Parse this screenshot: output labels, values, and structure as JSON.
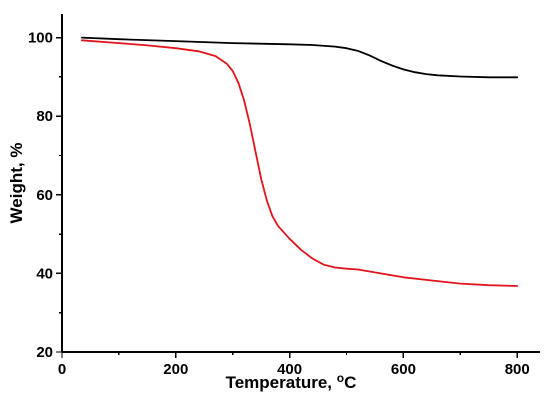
{
  "chart_data": {
    "type": "line",
    "title": "",
    "xlabel": "Temperature, ",
    "xlabel_unit_super": "o",
    "xlabel_unit": "C",
    "ylabel": "Weight, %",
    "xlim": [
      0,
      840
    ],
    "ylim": [
      20,
      106
    ],
    "xticks": [
      0,
      200,
      400,
      600,
      800
    ],
    "yticks": [
      20,
      40,
      60,
      80,
      100
    ],
    "grid": false,
    "legend": "none",
    "series": [
      {
        "color": "#000000",
        "x": [
          35,
          100,
          200,
          300,
          400,
          440,
          480,
          500,
          520,
          540,
          560,
          580,
          600,
          620,
          640,
          660,
          700,
          750,
          800
        ],
        "y": [
          100,
          99.6,
          99.1,
          98.6,
          98.3,
          98.1,
          97.7,
          97.3,
          96.6,
          95.5,
          94.1,
          92.9,
          91.9,
          91.2,
          90.7,
          90.4,
          90.1,
          89.9,
          89.9
        ]
      },
      {
        "color": "#e0151b",
        "x": [
          35,
          100,
          150,
          200,
          240,
          270,
          290,
          300,
          310,
          320,
          330,
          340,
          350,
          360,
          370,
          380,
          400,
          420,
          440,
          460,
          480,
          500,
          520,
          560,
          600,
          650,
          700,
          750,
          800
        ],
        "y": [
          99.3,
          98.6,
          98.0,
          97.3,
          96.5,
          95.3,
          93.3,
          91.5,
          88.5,
          84.0,
          78.0,
          71.0,
          64.0,
          58.5,
          54.5,
          52.0,
          48.8,
          46.0,
          43.8,
          42.2,
          41.5,
          41.2,
          41.0,
          40.0,
          39.0,
          38.2,
          37.4,
          37.0,
          36.8
        ]
      }
    ]
  }
}
